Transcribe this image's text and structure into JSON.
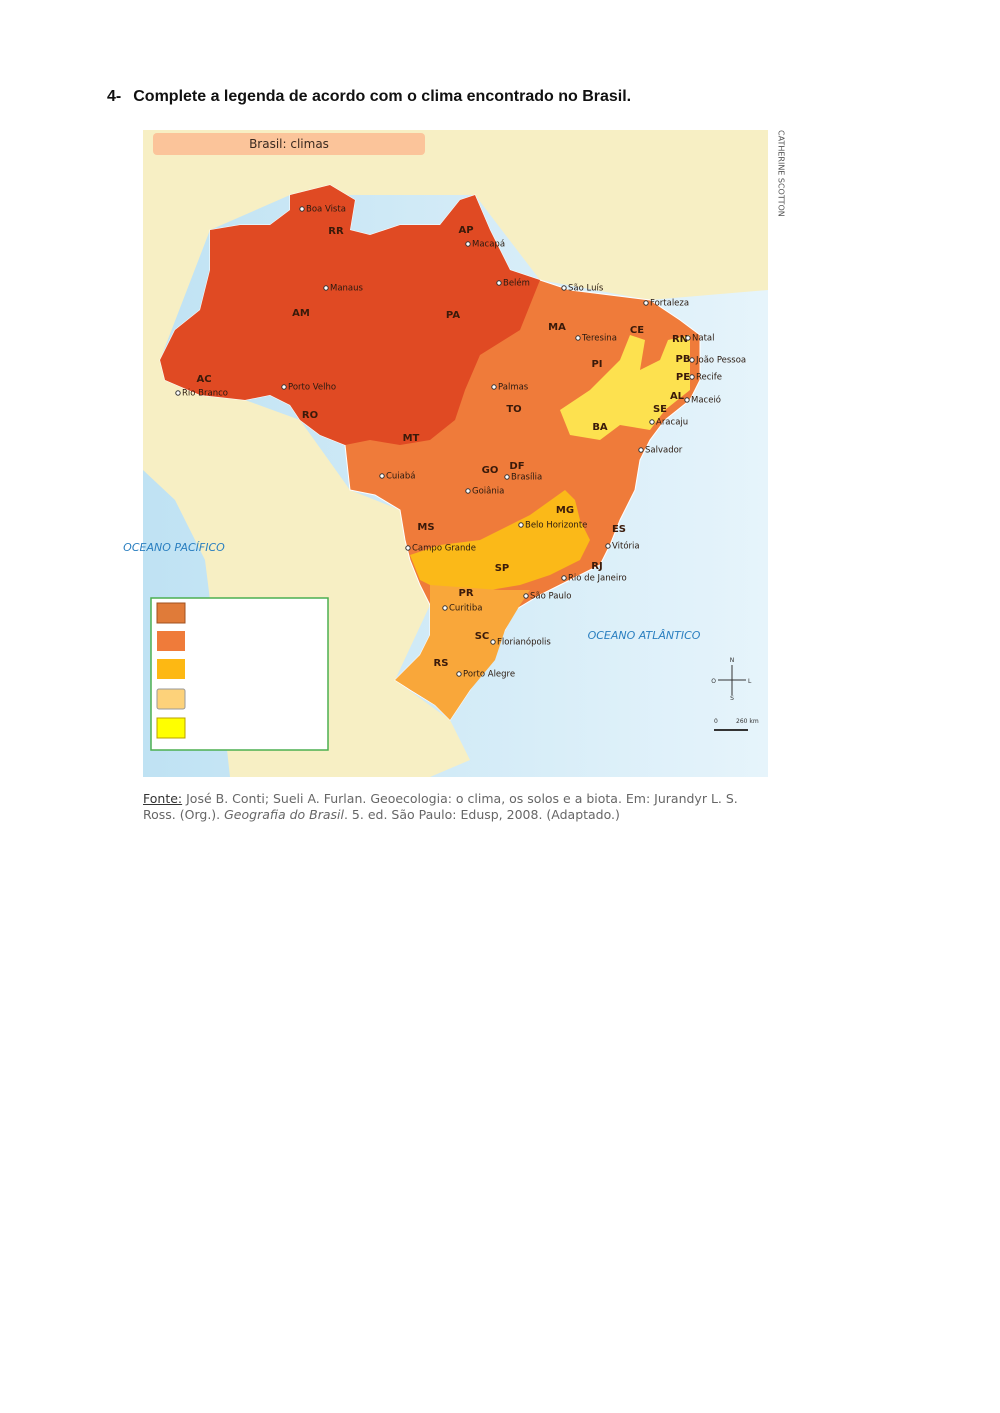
{
  "question": {
    "number": "4-",
    "text": "Complete a legenda de acordo com o clima encontrado no Brasil."
  },
  "map": {
    "title": "Brasil: climas",
    "credit": "CATHERINE SCOTTON",
    "states": [
      "RR",
      "AP",
      "AM",
      "PA",
      "MA",
      "CE",
      "RN",
      "PB",
      "PE",
      "AL",
      "SE",
      "PI",
      "BA",
      "AC",
      "RO",
      "MT",
      "TO",
      "GO",
      "DF",
      "MG",
      "ES",
      "MS",
      "SP",
      "RJ",
      "PR",
      "SC",
      "RS"
    ],
    "cities": [
      "Boa Vista",
      "Macapá",
      "Belém",
      "São Luís",
      "Fortaleza",
      "Manaus",
      "Teresina",
      "Natal",
      "João Pessoa",
      "Recife",
      "Maceió",
      "Aracaju",
      "Salvador",
      "Rio Branco",
      "Porto Velho",
      "Palmas",
      "Cuiabá",
      "Brasília",
      "Goiânia",
      "Belo Horizonte",
      "Vitória",
      "Campo Grande",
      "Rio de Janeiro",
      "São Paulo",
      "Curitiba",
      "Florianópolis",
      "Porto Alegre"
    ],
    "oceans": [
      "OCEANO PACÍFICO",
      "OCEANO ATLÂNTICO"
    ],
    "compass": [
      "N",
      "O",
      "L",
      "S"
    ],
    "scale": [
      "0",
      "260 km"
    ]
  },
  "source": {
    "label": "Fonte:",
    "before": "José B. Conti; Sueli A. Furlan. Geoecologia: o clima, os solos e a biota. Em: Jurandyr L. S. Ross. (Org.).",
    "book": "Geografia do Brasil",
    "after": ". 5. ed. São Paulo: Edusp, 2008. (Adaptado.)"
  }
}
